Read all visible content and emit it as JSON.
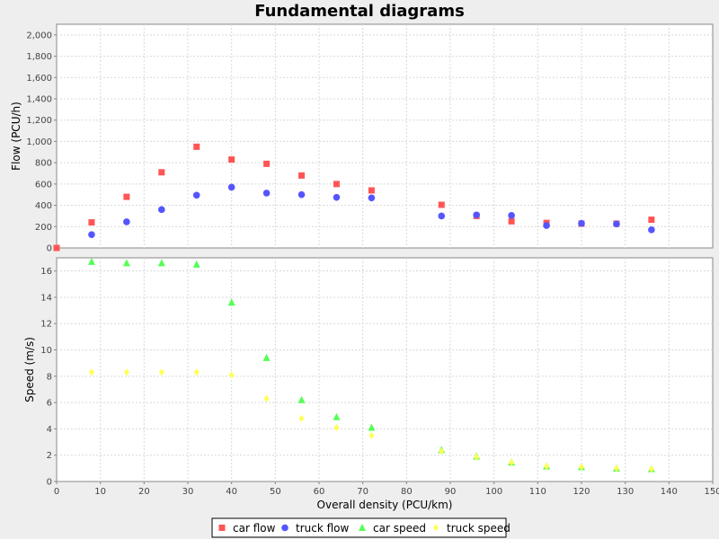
{
  "chart_data": {
    "type": "scatter",
    "title": "Fundamental diagrams",
    "xlabel": "Overall density (PCU/km)",
    "xlim": [
      0,
      150
    ],
    "xticks": [
      0,
      10,
      20,
      30,
      40,
      50,
      60,
      70,
      80,
      90,
      100,
      110,
      120,
      130,
      140,
      150
    ],
    "grid": true,
    "legend_position": "bottom",
    "panels": [
      {
        "id": "flow",
        "ylabel": "Flow (PCU/h)",
        "ylim": [
          0,
          2100
        ],
        "yticks": [
          0,
          200,
          400,
          600,
          800,
          1000,
          1200,
          1400,
          1600,
          1800,
          2000
        ],
        "ytick_labels": [
          "0",
          "200",
          "400",
          "600",
          "800",
          "1,000",
          "1,200",
          "1,400",
          "1,600",
          "1,800",
          "2,000"
        ],
        "series": [
          {
            "name": "car flow",
            "marker": "square",
            "color": "#ff5555",
            "points": [
              [
                0,
                0
              ],
              [
                8,
                240
              ],
              [
                16,
                480
              ],
              [
                24,
                710
              ],
              [
                32,
                950
              ],
              [
                40,
                830
              ],
              [
                48,
                790
              ],
              [
                56,
                680
              ],
              [
                64,
                600
              ],
              [
                72,
                540
              ],
              [
                88,
                405
              ],
              [
                96,
                300
              ],
              [
                104,
                250
              ],
              [
                112,
                235
              ],
              [
                120,
                228
              ],
              [
                128,
                228
              ],
              [
                136,
                265
              ]
            ]
          },
          {
            "name": "truck flow",
            "marker": "circle",
            "color": "#5555ff",
            "points": [
              [
                8,
                125
              ],
              [
                16,
                245
              ],
              [
                24,
                360
              ],
              [
                32,
                495
              ],
              [
                40,
                570
              ],
              [
                48,
                515
              ],
              [
                56,
                500
              ],
              [
                64,
                475
              ],
              [
                72,
                470
              ],
              [
                88,
                300
              ],
              [
                96,
                310
              ],
              [
                104,
                305
              ],
              [
                112,
                210
              ],
              [
                120,
                230
              ],
              [
                128,
                225
              ],
              [
                136,
                170
              ]
            ]
          }
        ]
      },
      {
        "id": "speed",
        "ylabel": "Speed (m/s)",
        "ylim": [
          0,
          17
        ],
        "yticks": [
          0,
          2,
          4,
          6,
          8,
          10,
          12,
          14,
          16
        ],
        "ytick_labels": [
          "0",
          "2",
          "4",
          "6",
          "8",
          "10",
          "12",
          "14",
          "16"
        ],
        "series": [
          {
            "name": "car speed",
            "marker": "triangle",
            "color": "#55ff55",
            "points": [
              [
                8,
                16.7
              ],
              [
                16,
                16.6
              ],
              [
                24,
                16.6
              ],
              [
                32,
                16.5
              ],
              [
                40,
                13.6
              ],
              [
                48,
                9.4
              ],
              [
                56,
                6.2
              ],
              [
                64,
                4.9
              ],
              [
                72,
                4.1
              ],
              [
                88,
                2.4
              ],
              [
                96,
                1.9
              ],
              [
                104,
                1.45
              ],
              [
                112,
                1.15
              ],
              [
                120,
                1.1
              ],
              [
                128,
                1.0
              ],
              [
                136,
                0.95
              ]
            ]
          },
          {
            "name": "truck speed",
            "marker": "diamond",
            "color": "#ffff55",
            "points": [
              [
                8,
                8.3
              ],
              [
                16,
                8.3
              ],
              [
                24,
                8.3
              ],
              [
                32,
                8.3
              ],
              [
                40,
                8.1
              ],
              [
                48,
                6.3
              ],
              [
                56,
                4.8
              ],
              [
                64,
                4.1
              ],
              [
                72,
                3.5
              ],
              [
                88,
                2.3
              ],
              [
                96,
                1.85
              ],
              [
                104,
                1.45
              ],
              [
                112,
                1.15
              ],
              [
                120,
                1.1
              ],
              [
                128,
                1.0
              ],
              [
                136,
                0.95
              ]
            ]
          }
        ]
      }
    ],
    "legend": [
      {
        "name": "car flow",
        "marker": "square",
        "color": "#ff5555"
      },
      {
        "name": "truck flow",
        "marker": "circle",
        "color": "#5555ff"
      },
      {
        "name": "car speed",
        "marker": "triangle",
        "color": "#55ff55"
      },
      {
        "name": "truck speed",
        "marker": "diamond",
        "color": "#ffff55"
      }
    ]
  }
}
